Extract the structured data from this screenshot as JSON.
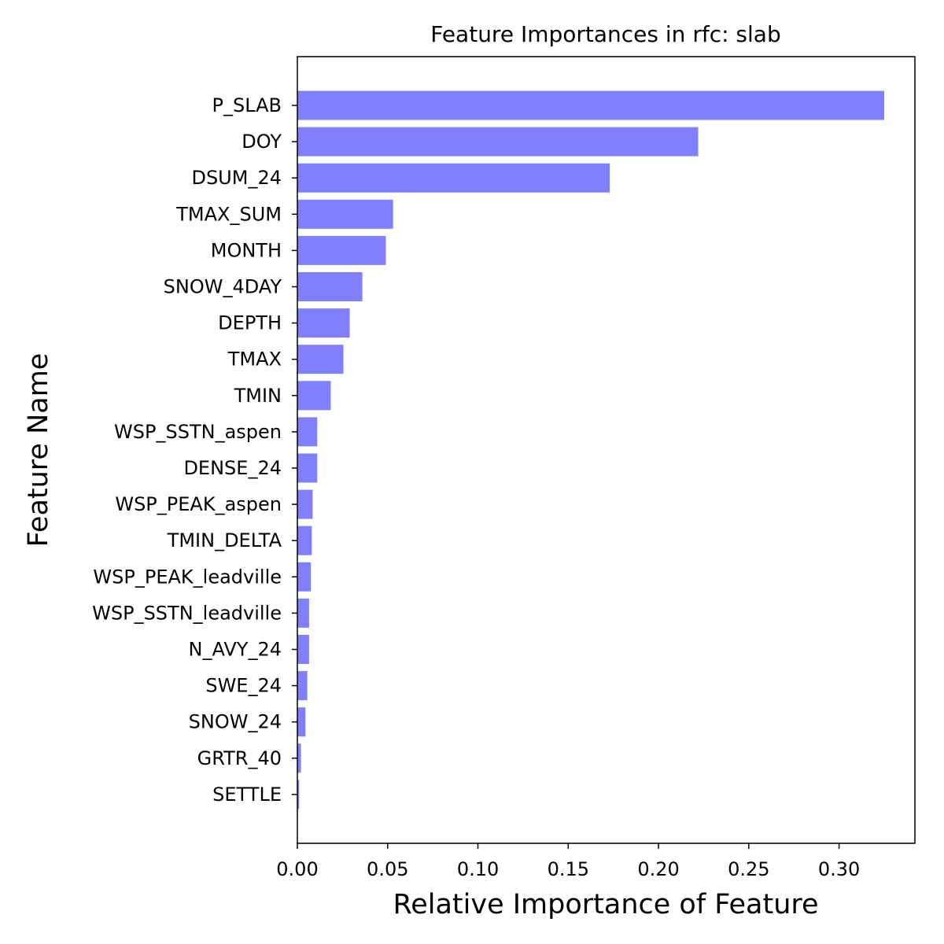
{
  "chart_data": {
    "type": "bar",
    "orientation": "horizontal",
    "title": "Feature Importances in rfc: slab",
    "xlabel": "Relative Importance of Feature",
    "ylabel": "Feature Name",
    "bar_color": "#8080ff",
    "xlim": [
      0,
      0.342
    ],
    "x_ticks": [
      "0.00",
      "0.05",
      "0.10",
      "0.15",
      "0.20",
      "0.25",
      "0.30"
    ],
    "grid": false,
    "categories": [
      "P_SLAB",
      "DOY",
      "DSUM_24",
      "TMAX_SUM",
      "MONTH",
      "SNOW_4DAY",
      "DEPTH",
      "TMAX",
      "TMIN",
      "WSP_SSTN_aspen",
      "DENSE_24",
      "WSP_PEAK_aspen",
      "TMIN_DELTA",
      "WSP_PEAK_leadville",
      "WSP_SSTN_leadville",
      "N_AVY_24",
      "SWE_24",
      "SNOW_24",
      "GRTR_40",
      "SETTLE"
    ],
    "values": [
      0.325,
      0.222,
      0.173,
      0.053,
      0.049,
      0.036,
      0.029,
      0.0255,
      0.0185,
      0.011,
      0.011,
      0.0085,
      0.008,
      0.0075,
      0.0065,
      0.0065,
      0.0055,
      0.0045,
      0.002,
      0.001
    ]
  }
}
